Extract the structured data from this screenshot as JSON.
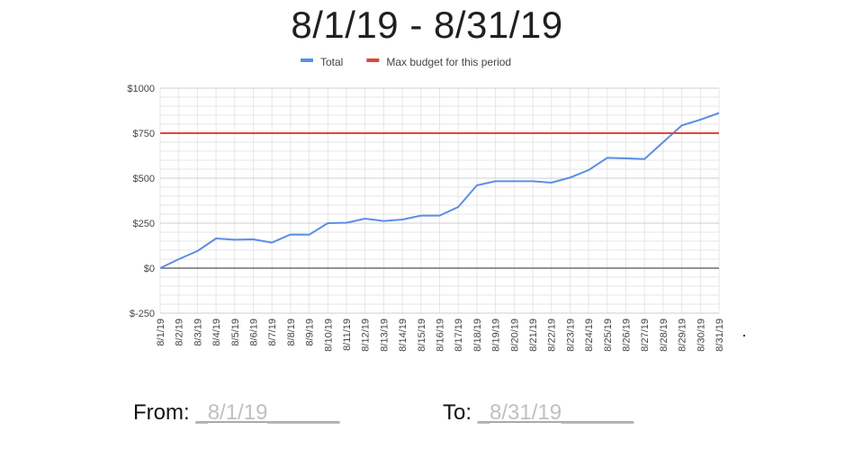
{
  "title": "8/1/19 - 8/31/19",
  "legend": [
    {
      "label": "Total",
      "color": "#5b8ee6"
    },
    {
      "label": "Max budget for this period",
      "color": "#e0463c"
    }
  ],
  "chart_data": {
    "type": "line",
    "title": "8/1/19 - 8/31/19",
    "categories": [
      "8/1/19",
      "8/2/19",
      "8/3/19",
      "8/4/19",
      "8/5/19",
      "8/6/19",
      "8/7/19",
      "8/8/19",
      "8/9/19",
      "8/10/19",
      "8/11/19",
      "8/12/19",
      "8/13/19",
      "8/14/19",
      "8/15/19",
      "8/16/19",
      "8/17/19",
      "8/18/19",
      "8/19/19",
      "8/20/19",
      "8/21/19",
      "8/22/19",
      "8/23/19",
      "8/24/19",
      "8/25/19",
      "8/26/19",
      "8/27/19",
      "8/28/19",
      "8/29/19",
      "8/30/19",
      "8/31/19"
    ],
    "series": [
      {
        "name": "Total",
        "color": "#5b8ee6",
        "values": [
          0,
          50,
          95,
          165,
          158,
          160,
          142,
          187,
          186,
          250,
          252,
          275,
          262,
          270,
          292,
          292,
          340,
          460,
          483,
          483,
          483,
          475,
          503,
          545,
          613,
          610,
          606,
          700,
          793,
          825,
          862
        ]
      },
      {
        "name": "Max budget for this period",
        "color": "#e0463c",
        "values": [
          750,
          750,
          750,
          750,
          750,
          750,
          750,
          750,
          750,
          750,
          750,
          750,
          750,
          750,
          750,
          750,
          750,
          750,
          750,
          750,
          750,
          750,
          750,
          750,
          750,
          750,
          750,
          750,
          750,
          750,
          750
        ]
      }
    ],
    "yticks": [
      -250,
      0,
      250,
      500,
      750,
      1000
    ],
    "ytick_labels": [
      "$-250",
      "$0",
      "$250",
      "$500",
      "$750",
      "$1000"
    ],
    "ylim": [
      -250,
      1000
    ],
    "grid": true,
    "legend_position": "top"
  },
  "footer": {
    "from_label": "From:",
    "from_value": "_8/1/19______",
    "to_label": "To:",
    "to_value": "_8/31/19______"
  }
}
